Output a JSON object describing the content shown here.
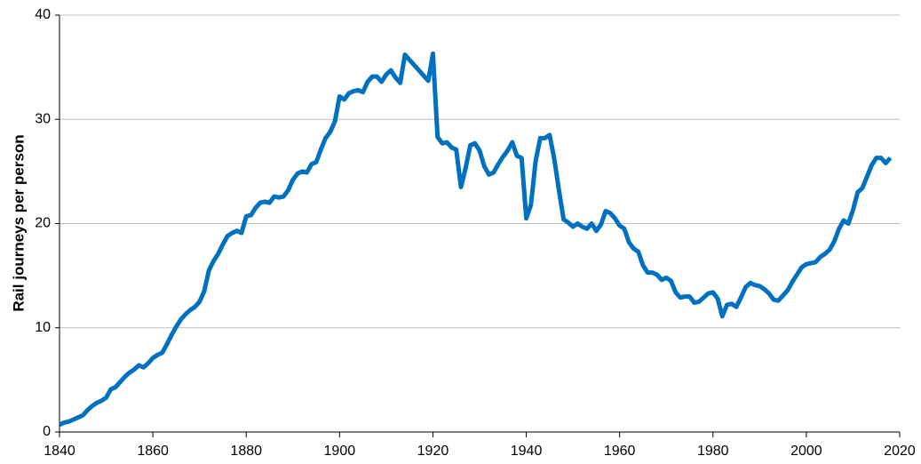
{
  "chart_data": {
    "type": "line",
    "y_label": "Rail journeys per person",
    "x": [
      1840,
      1841,
      1842,
      1843,
      1844,
      1845,
      1846,
      1847,
      1848,
      1849,
      1850,
      1851,
      1852,
      1853,
      1854,
      1855,
      1856,
      1857,
      1858,
      1859,
      1860,
      1861,
      1862,
      1863,
      1864,
      1865,
      1866,
      1867,
      1868,
      1869,
      1870,
      1871,
      1872,
      1873,
      1874,
      1875,
      1876,
      1877,
      1878,
      1879,
      1880,
      1881,
      1882,
      1883,
      1884,
      1885,
      1886,
      1887,
      1888,
      1889,
      1890,
      1891,
      1892,
      1893,
      1894,
      1895,
      1896,
      1897,
      1898,
      1899,
      1900,
      1901,
      1902,
      1903,
      1904,
      1905,
      1906,
      1907,
      1908,
      1909,
      1910,
      1911,
      1912,
      1913,
      1914,
      1919,
      1920,
      1921,
      1922,
      1923,
      1924,
      1925,
      1926,
      1927,
      1928,
      1929,
      1930,
      1931,
      1932,
      1933,
      1934,
      1935,
      1936,
      1937,
      1938,
      1939,
      1940,
      1941,
      1942,
      1943,
      1944,
      1945,
      1946,
      1947,
      1948,
      1949,
      1950,
      1951,
      1952,
      1953,
      1954,
      1955,
      1956,
      1957,
      1958,
      1959,
      1960,
      1961,
      1962,
      1963,
      1964,
      1965,
      1966,
      1967,
      1968,
      1969,
      1970,
      1971,
      1972,
      1973,
      1974,
      1975,
      1976,
      1977,
      1978,
      1979,
      1980,
      1981,
      1982,
      1983,
      1984,
      1985,
      1986,
      1987,
      1988,
      1989,
      1990,
      1991,
      1992,
      1993,
      1994,
      1995,
      1996,
      1997,
      1998,
      1999,
      2000,
      2001,
      2002,
      2003,
      2004,
      2005,
      2006,
      2007,
      2008,
      2009,
      2010,
      2011,
      2012,
      2013,
      2014,
      2015,
      2016,
      2017,
      2018
    ],
    "series": [
      {
        "name": "Rail journeys per person",
        "color": "#0070c0",
        "values": [
          0.7,
          0.9,
          1.0,
          1.2,
          1.4,
          1.6,
          2.1,
          2.5,
          2.8,
          3.0,
          3.3,
          4.1,
          4.3,
          4.8,
          5.3,
          5.7,
          6.0,
          6.4,
          6.2,
          6.6,
          7.1,
          7.4,
          7.6,
          8.4,
          9.3,
          10.1,
          10.8,
          11.3,
          11.7,
          12.0,
          12.5,
          13.5,
          15.5,
          16.4,
          17.1,
          18.0,
          18.8,
          19.1,
          19.3,
          19.1,
          20.7,
          20.8,
          21.5,
          22.0,
          22.1,
          22.0,
          22.6,
          22.5,
          22.6,
          23.2,
          24.2,
          24.8,
          25.0,
          24.9,
          25.7,
          25.9,
          27.1,
          28.2,
          28.8,
          29.8,
          32.2,
          31.9,
          32.5,
          32.7,
          32.8,
          32.6,
          33.6,
          34.1,
          34.1,
          33.6,
          34.3,
          34.7,
          34.0,
          33.5,
          36.2,
          33.7,
          36.3,
          28.3,
          27.7,
          27.8,
          27.3,
          27.1,
          23.5,
          25.3,
          27.5,
          27.7,
          27.0,
          25.5,
          24.7,
          24.9,
          25.7,
          26.4,
          27.0,
          27.8,
          26.5,
          26.3,
          20.5,
          21.8,
          26.0,
          28.2,
          28.2,
          28.5,
          26.2,
          23.2,
          20.4,
          20.1,
          19.7,
          20.0,
          19.7,
          19.5,
          20.0,
          19.3,
          19.9,
          21.2,
          21.0,
          20.5,
          19.8,
          19.5,
          18.2,
          17.6,
          17.3,
          16.0,
          15.3,
          15.3,
          15.1,
          14.6,
          14.8,
          14.5,
          13.4,
          12.9,
          13.0,
          13.0,
          12.4,
          12.5,
          12.9,
          13.3,
          13.4,
          12.8,
          11.1,
          12.2,
          12.3,
          12.0,
          12.9,
          13.9,
          14.3,
          14.1,
          14.0,
          13.7,
          13.3,
          12.7,
          12.6,
          13.1,
          13.6,
          14.4,
          15.1,
          15.8,
          16.1,
          16.2,
          16.3,
          16.8,
          17.1,
          17.5,
          18.3,
          19.5,
          20.3,
          20.0,
          21.3,
          23.0,
          23.4,
          24.5,
          25.6,
          26.3,
          26.3,
          25.8,
          26.3
        ]
      }
    ],
    "xlim": [
      1840,
      2020
    ],
    "xticks": [
      1840,
      1860,
      1880,
      1900,
      1920,
      1940,
      1960,
      1980,
      2000,
      2020
    ],
    "ylim": [
      0,
      40
    ],
    "yticks": [
      0,
      10,
      20,
      30,
      40
    ],
    "grid": true
  }
}
